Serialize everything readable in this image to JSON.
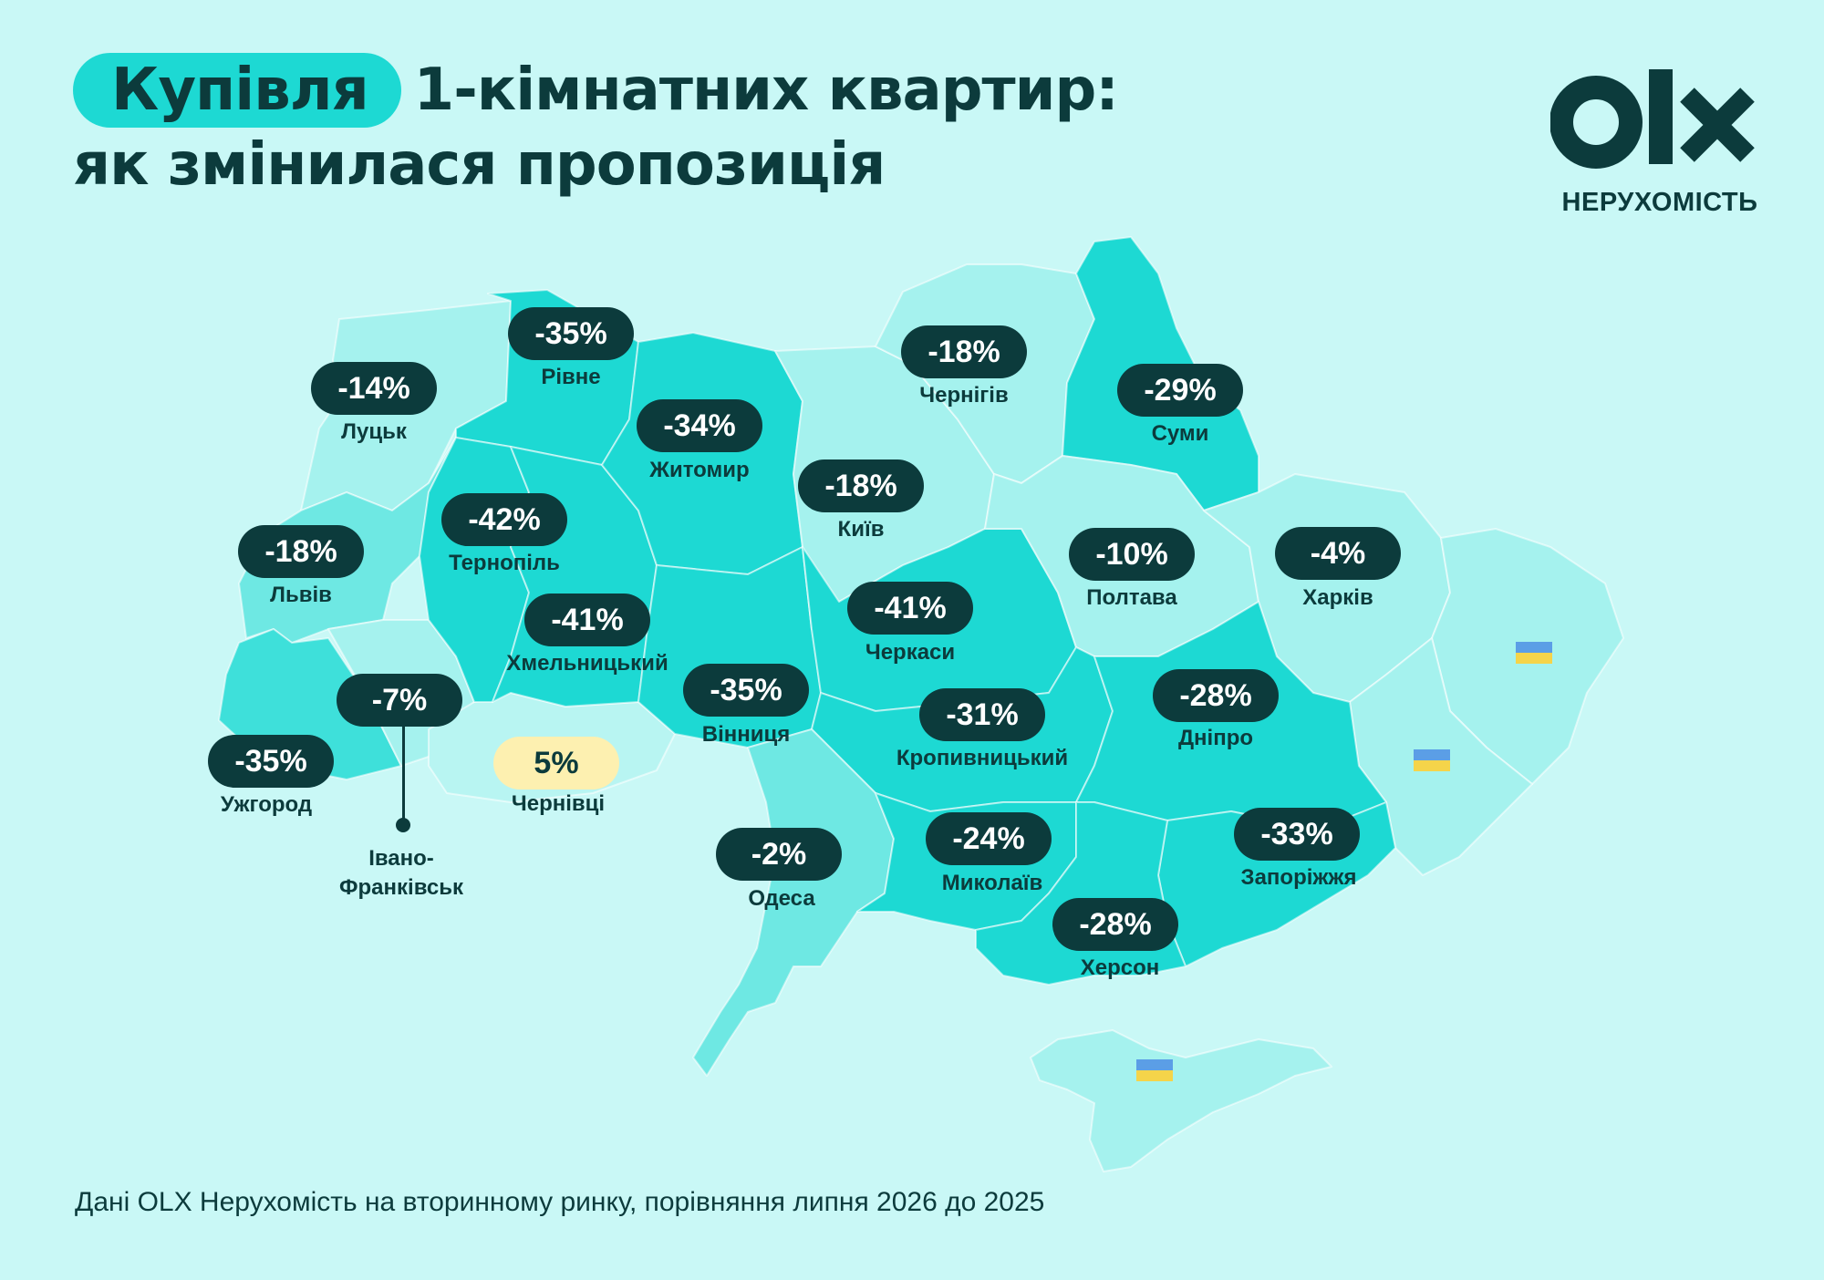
{
  "title": {
    "highlight": "Купівля",
    "line1_rest": "1-кімнатних квартир:",
    "line2": "як змінилася пропозиція"
  },
  "brand": {
    "logo_text": "OLX",
    "subtitle": "НЕРУХОМІСТЬ"
  },
  "colors": {
    "background": "#c9f8f6",
    "dark": "#0c3b3c",
    "accent": "#1dd9d3",
    "positive_badge": "#fdf0b0",
    "region_dark": "#1dd9d3",
    "region_mid": "#6ee8e3",
    "region_light": "#a5f2ee"
  },
  "cities": [
    {
      "name": "Рівне",
      "change": "-35%"
    },
    {
      "name": "Луцьк",
      "change": "-14%"
    },
    {
      "name": "Житомир",
      "change": "-34%"
    },
    {
      "name": "Чернігів",
      "change": "-18%"
    },
    {
      "name": "Суми",
      "change": "-29%"
    },
    {
      "name": "Київ",
      "change": "-18%"
    },
    {
      "name": "Тернопіль",
      "change": "-42%"
    },
    {
      "name": "Львів",
      "change": "-18%"
    },
    {
      "name": "Полтава",
      "change": "-10%"
    },
    {
      "name": "Харків",
      "change": "-4%"
    },
    {
      "name": "Хмельницький",
      "change": "-41%"
    },
    {
      "name": "Черкаси",
      "change": "-41%"
    },
    {
      "name": "Вінниця",
      "change": "-35%"
    },
    {
      "name": "Кропивницький",
      "change": "-31%"
    },
    {
      "name": "Дніпро",
      "change": "-28%"
    },
    {
      "name": "Ужгород",
      "change": "-35%"
    },
    {
      "name": "Івано-\nФранківськ",
      "change": "-7%"
    },
    {
      "name": "Чернівці",
      "change": "5%"
    },
    {
      "name": "Одеса",
      "change": "-2%"
    },
    {
      "name": "Миколаїв",
      "change": "-24%"
    },
    {
      "name": "Запоріжжя",
      "change": "-33%"
    },
    {
      "name": "Херсон",
      "change": "-28%"
    }
  ],
  "footer": "Дані OLX Нерухомість на вторинному ринку, порівняння липня 2026 до 2025"
}
